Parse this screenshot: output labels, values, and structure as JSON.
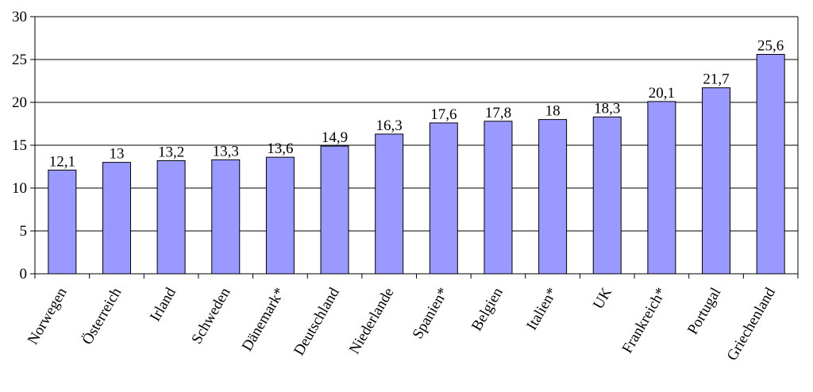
{
  "chart_data": {
    "type": "bar",
    "title": "",
    "xlabel": "",
    "ylabel": "",
    "ylim": [
      0,
      30
    ],
    "yticks": [
      0,
      5,
      10,
      15,
      20,
      25,
      30
    ],
    "grid": true,
    "categories": [
      "Norwegen",
      "Österreich",
      "Irland",
      "Schweden",
      "Dänemark*",
      "Deutschland",
      "Niederlande",
      "Spanien*",
      "Belgien",
      "Italien*",
      "UK",
      "Frankreich*",
      "Portugal",
      "Griechenland"
    ],
    "values": [
      12.1,
      13,
      13.2,
      13.3,
      13.6,
      14.9,
      16.3,
      17.6,
      17.8,
      18,
      18.3,
      20.1,
      21.7,
      25.6
    ],
    "data_labels": [
      "12,1",
      "13",
      "13,2",
      "13,3",
      "13,6",
      "14,9",
      "16,3",
      "17,6",
      "17,8",
      "18",
      "18,3",
      "20,1",
      "21,7",
      "25,6"
    ],
    "colors": {
      "bar": "#9999ff",
      "bar_stroke": "#000000",
      "grid": "#000000"
    }
  }
}
